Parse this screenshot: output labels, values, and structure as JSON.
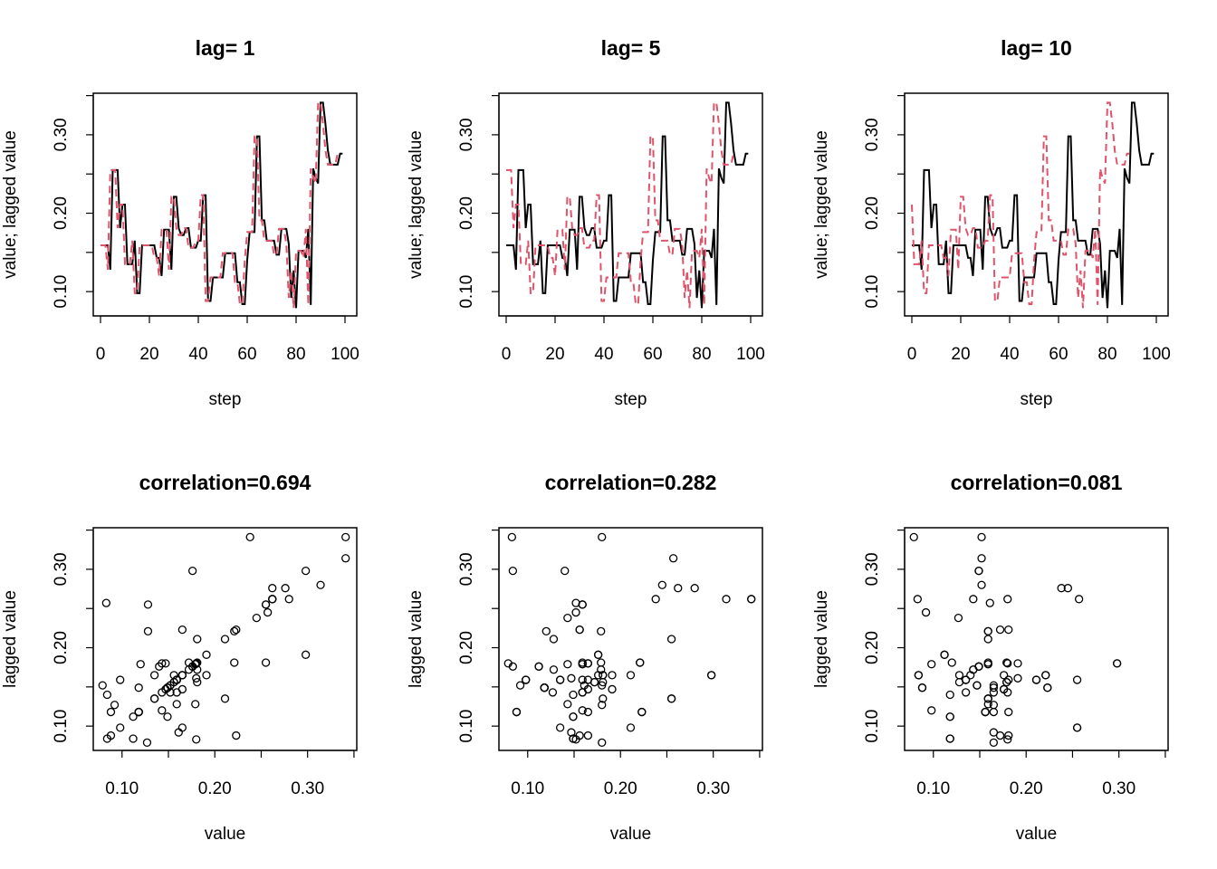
{
  "colors": {
    "series": "#000000",
    "lagged": "#DF536B",
    "points": "#000000"
  },
  "chart_data": {
    "series": {
      "steps_from": 0,
      "values": [
        0.159,
        0.159,
        0.159,
        0.159,
        0.128,
        0.255,
        0.255,
        0.255,
        0.181,
        0.211,
        0.211,
        0.135,
        0.135,
        0.135,
        0.165,
        0.098,
        0.098,
        0.159,
        0.159,
        0.159,
        0.159,
        0.159,
        0.159,
        0.143,
        0.143,
        0.12,
        0.179,
        0.179,
        0.179,
        0.128,
        0.221,
        0.221,
        0.181,
        0.172,
        0.172,
        0.181,
        0.181,
        0.156,
        0.156,
        0.156,
        0.165,
        0.165,
        0.223,
        0.223,
        0.088,
        0.088,
        0.118,
        0.118,
        0.118,
        0.118,
        0.118,
        0.149,
        0.149,
        0.149,
        0.149,
        0.149,
        0.112,
        0.112,
        0.084,
        0.084,
        0.14,
        0.176,
        0.176,
        0.176,
        0.298,
        0.298,
        0.191,
        0.191,
        0.165,
        0.165,
        0.165,
        0.165,
        0.147,
        0.147,
        0.18,
        0.18,
        0.18,
        0.161,
        0.092,
        0.127,
        0.079,
        0.152,
        0.152,
        0.152,
        0.143,
        0.18,
        0.083,
        0.257,
        0.245,
        0.238,
        0.341,
        0.341,
        0.314,
        0.28,
        0.262,
        0.262,
        0.262,
        0.262,
        0.276,
        0.276
      ]
    },
    "panels": [
      {
        "type": "line",
        "title": "lag= 1",
        "lag": 1,
        "xlabel": "step",
        "ylabel": "value; lagged value",
        "xticks": [
          "0",
          "20",
          "40",
          "60",
          "80",
          "100"
        ],
        "yticks": [
          "0.10",
          "0.20",
          "0.30"
        ],
        "legend": "none",
        "grid": false
      },
      {
        "type": "line",
        "title": "lag= 5",
        "lag": 5,
        "xlabel": "step",
        "ylabel": "value; lagged value",
        "xticks": [
          "0",
          "20",
          "40",
          "60",
          "80",
          "100"
        ],
        "yticks": [
          "0.10",
          "0.20",
          "0.30"
        ],
        "legend": "none",
        "grid": false
      },
      {
        "type": "line",
        "title": "lag= 10",
        "lag": 10,
        "xlabel": "step",
        "ylabel": "value; lagged value",
        "xticks": [
          "0",
          "20",
          "40",
          "60",
          "80",
          "100"
        ],
        "yticks": [
          "0.10",
          "0.20",
          "0.30"
        ],
        "legend": "none",
        "grid": false
      },
      {
        "type": "scatter",
        "title": "correlation=0.694",
        "lag": 1,
        "xlabel": "value",
        "ylabel": "lagged value",
        "xticks": [
          "0.10",
          "0.20",
          "0.30"
        ],
        "yticks": [
          "0.10",
          "0.20",
          "0.30"
        ],
        "legend": "none",
        "grid": false
      },
      {
        "type": "scatter",
        "title": "correlation=0.282",
        "lag": 5,
        "xlabel": "value",
        "ylabel": "lagged value",
        "xticks": [
          "0.10",
          "0.20",
          "0.30"
        ],
        "yticks": [
          "0.10",
          "0.20",
          "0.30"
        ],
        "legend": "none",
        "grid": false
      },
      {
        "type": "scatter",
        "title": "correlation=0.081",
        "lag": 10,
        "xlabel": "value",
        "ylabel": "lagged value",
        "xticks": [
          "0.10",
          "0.20",
          "0.30"
        ],
        "yticks": [
          "0.10",
          "0.20",
          "0.30"
        ],
        "legend": "none",
        "grid": false
      }
    ],
    "line_xlim": [
      0,
      100
    ],
    "line_ylim": [
      0.069,
      0.353
    ],
    "scatter_xlim": [
      0.069,
      0.353
    ],
    "scatter_ylim": [
      0.069,
      0.353
    ]
  }
}
